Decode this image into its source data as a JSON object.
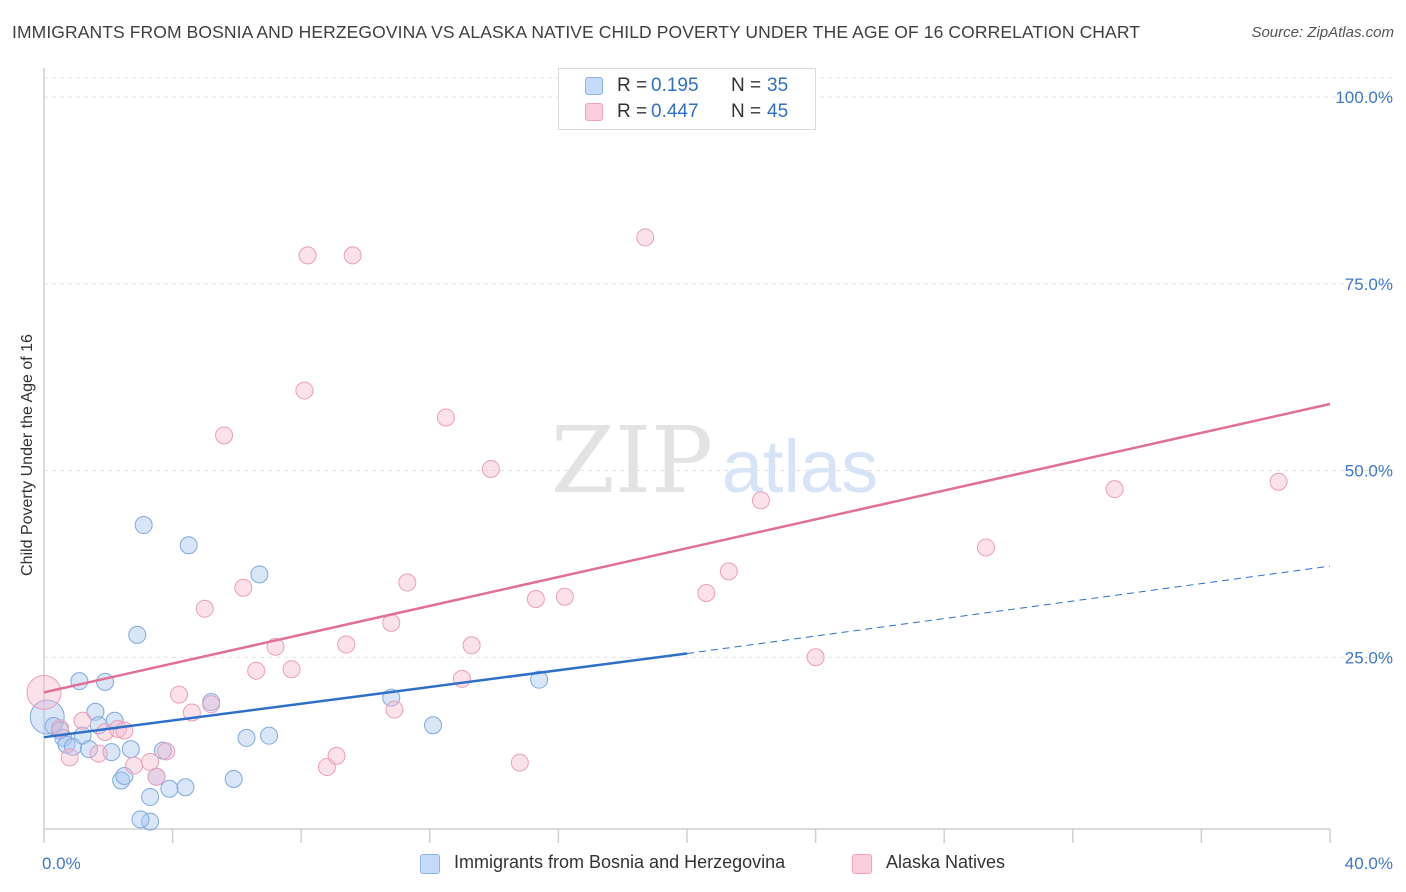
{
  "header": {
    "title": "IMMIGRANTS FROM BOSNIA AND HERZEGOVINA VS ALASKA NATIVE CHILD POVERTY UNDER THE AGE OF 16 CORRELATION CHART",
    "source": "Source: ZipAtlas.com"
  },
  "watermark": {
    "zip": "ZIP",
    "atlas": "atlas"
  },
  "legend": {
    "r_label": "R =",
    "n_label": "N =",
    "rows": [
      {
        "r": "0.195",
        "n": "35",
        "color": "#a8c8f0"
      },
      {
        "r": "0.447",
        "n": "45",
        "color": "#f6b8cc"
      }
    ]
  },
  "chart_data": {
    "type": "scatter",
    "xlabel": "",
    "ylabel": "Child Poverty Under the Age of 16",
    "xlim": [
      0,
      40
    ],
    "ylim": [
      0,
      100
    ],
    "x_tick_labels": [
      {
        "value": 0,
        "label": "0.0%"
      },
      {
        "value": 40,
        "label": "40.0%"
      }
    ],
    "y_tick_labels": [
      {
        "value": 25,
        "label": "25.0%"
      },
      {
        "value": 50,
        "label": "50.0%"
      },
      {
        "value": 75,
        "label": "75.0%"
      },
      {
        "value": 100,
        "label": "100.0%"
      }
    ],
    "grid": "horizontal dashed",
    "legend_position": "top-center",
    "series": [
      {
        "name": "Immigrants from Bosnia and Herzegovina",
        "color": "#a8c8f0",
        "line_color": "#2f6fc7",
        "trend": {
          "x0": 0,
          "y0": 14.3,
          "x1": 20,
          "y1": 25.5,
          "x_dash_end": 40,
          "y_dash_end": 37.2
        },
        "points": [
          [
            0.1,
            17.0
          ],
          [
            0.3,
            15.8
          ],
          [
            0.5,
            15.2
          ],
          [
            0.6,
            14.2
          ],
          [
            0.7,
            13.3
          ],
          [
            0.9,
            13.0
          ],
          [
            1.1,
            21.8
          ],
          [
            1.2,
            14.5
          ],
          [
            1.4,
            12.7
          ],
          [
            1.6,
            17.7
          ],
          [
            1.7,
            15.9
          ],
          [
            1.9,
            21.7
          ],
          [
            2.1,
            12.3
          ],
          [
            2.2,
            16.5
          ],
          [
            2.4,
            8.5
          ],
          [
            2.5,
            9.1
          ],
          [
            2.7,
            12.7
          ],
          [
            2.9,
            28.0
          ],
          [
            3.1,
            42.7
          ],
          [
            3.3,
            3.0
          ],
          [
            3.3,
            6.3
          ],
          [
            3.5,
            9.0
          ],
          [
            3.7,
            12.5
          ],
          [
            3.9,
            7.4
          ],
          [
            4.4,
            7.6
          ],
          [
            4.5,
            40.0
          ],
          [
            5.2,
            19.0
          ],
          [
            5.9,
            8.7
          ],
          [
            6.3,
            14.2
          ],
          [
            6.7,
            36.1
          ],
          [
            7.0,
            14.5
          ],
          [
            10.8,
            19.6
          ],
          [
            12.1,
            15.9
          ],
          [
            15.4,
            22.0
          ],
          [
            3.0,
            3.3
          ]
        ]
      },
      {
        "name": "Alaska Natives",
        "color": "#f6b8cc",
        "line_color": "#e0709a",
        "trend": {
          "x0": 0,
          "y0": 20.3,
          "x1": 40,
          "y1": 58.9
        },
        "points": [
          [
            0.0,
            20.3
          ],
          [
            0.5,
            15.5
          ],
          [
            0.8,
            11.6
          ],
          [
            1.2,
            16.5
          ],
          [
            1.7,
            12.1
          ],
          [
            1.9,
            15.0
          ],
          [
            2.3,
            15.4
          ],
          [
            2.5,
            15.2
          ],
          [
            2.8,
            10.5
          ],
          [
            3.3,
            11.0
          ],
          [
            3.5,
            9.0
          ],
          [
            3.8,
            12.4
          ],
          [
            4.2,
            20.0
          ],
          [
            4.6,
            17.6
          ],
          [
            5.0,
            31.5
          ],
          [
            5.2,
            18.7
          ],
          [
            5.6,
            54.7
          ],
          [
            6.2,
            34.3
          ],
          [
            6.6,
            23.2
          ],
          [
            7.2,
            26.4
          ],
          [
            7.7,
            23.4
          ],
          [
            8.1,
            60.7
          ],
          [
            8.2,
            78.8
          ],
          [
            8.8,
            10.3
          ],
          [
            9.1,
            11.8
          ],
          [
            9.4,
            26.7
          ],
          [
            9.6,
            78.8
          ],
          [
            10.8,
            29.6
          ],
          [
            10.9,
            18.0
          ],
          [
            11.3,
            35.0
          ],
          [
            12.5,
            57.1
          ],
          [
            13.0,
            22.1
          ],
          [
            13.3,
            26.6
          ],
          [
            13.9,
            50.2
          ],
          [
            14.8,
            10.9
          ],
          [
            15.3,
            32.8
          ],
          [
            16.2,
            33.1
          ],
          [
            18.7,
            81.2
          ],
          [
            20.6,
            33.6
          ],
          [
            21.3,
            36.5
          ],
          [
            22.3,
            46.0
          ],
          [
            24.0,
            25.0
          ],
          [
            29.3,
            39.7
          ],
          [
            33.3,
            47.5
          ],
          [
            38.4,
            48.5
          ]
        ]
      }
    ]
  }
}
